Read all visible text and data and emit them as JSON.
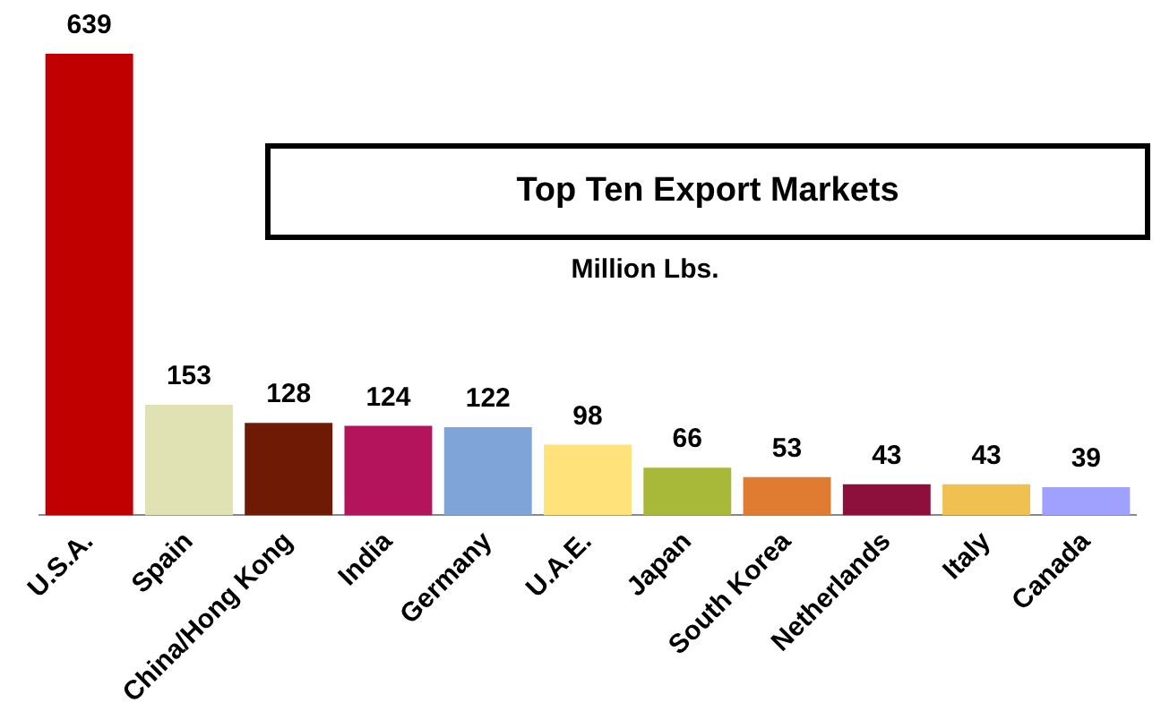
{
  "chart_data": {
    "type": "bar",
    "title": "Top Ten Export Markets",
    "subtitle": "Million Lbs.",
    "categories": [
      "U.S.A.",
      "Spain",
      "China/Hong Kong",
      "India",
      "Germany",
      "U.A.E.",
      "Japan",
      "South Korea",
      "Netherlands",
      "Italy",
      "Canada"
    ],
    "values": [
      639,
      153,
      128,
      124,
      122,
      98,
      66,
      53,
      43,
      43,
      39
    ],
    "colors": [
      "#c00000",
      "#e0e2b4",
      "#6e1a04",
      "#b3145c",
      "#7fa4d8",
      "#ffe27a",
      "#a8b838",
      "#e07b32",
      "#8c0f3c",
      "#f0c050",
      "#a0a0ff"
    ],
    "data_labels": true,
    "grid": false,
    "legend": false
  }
}
